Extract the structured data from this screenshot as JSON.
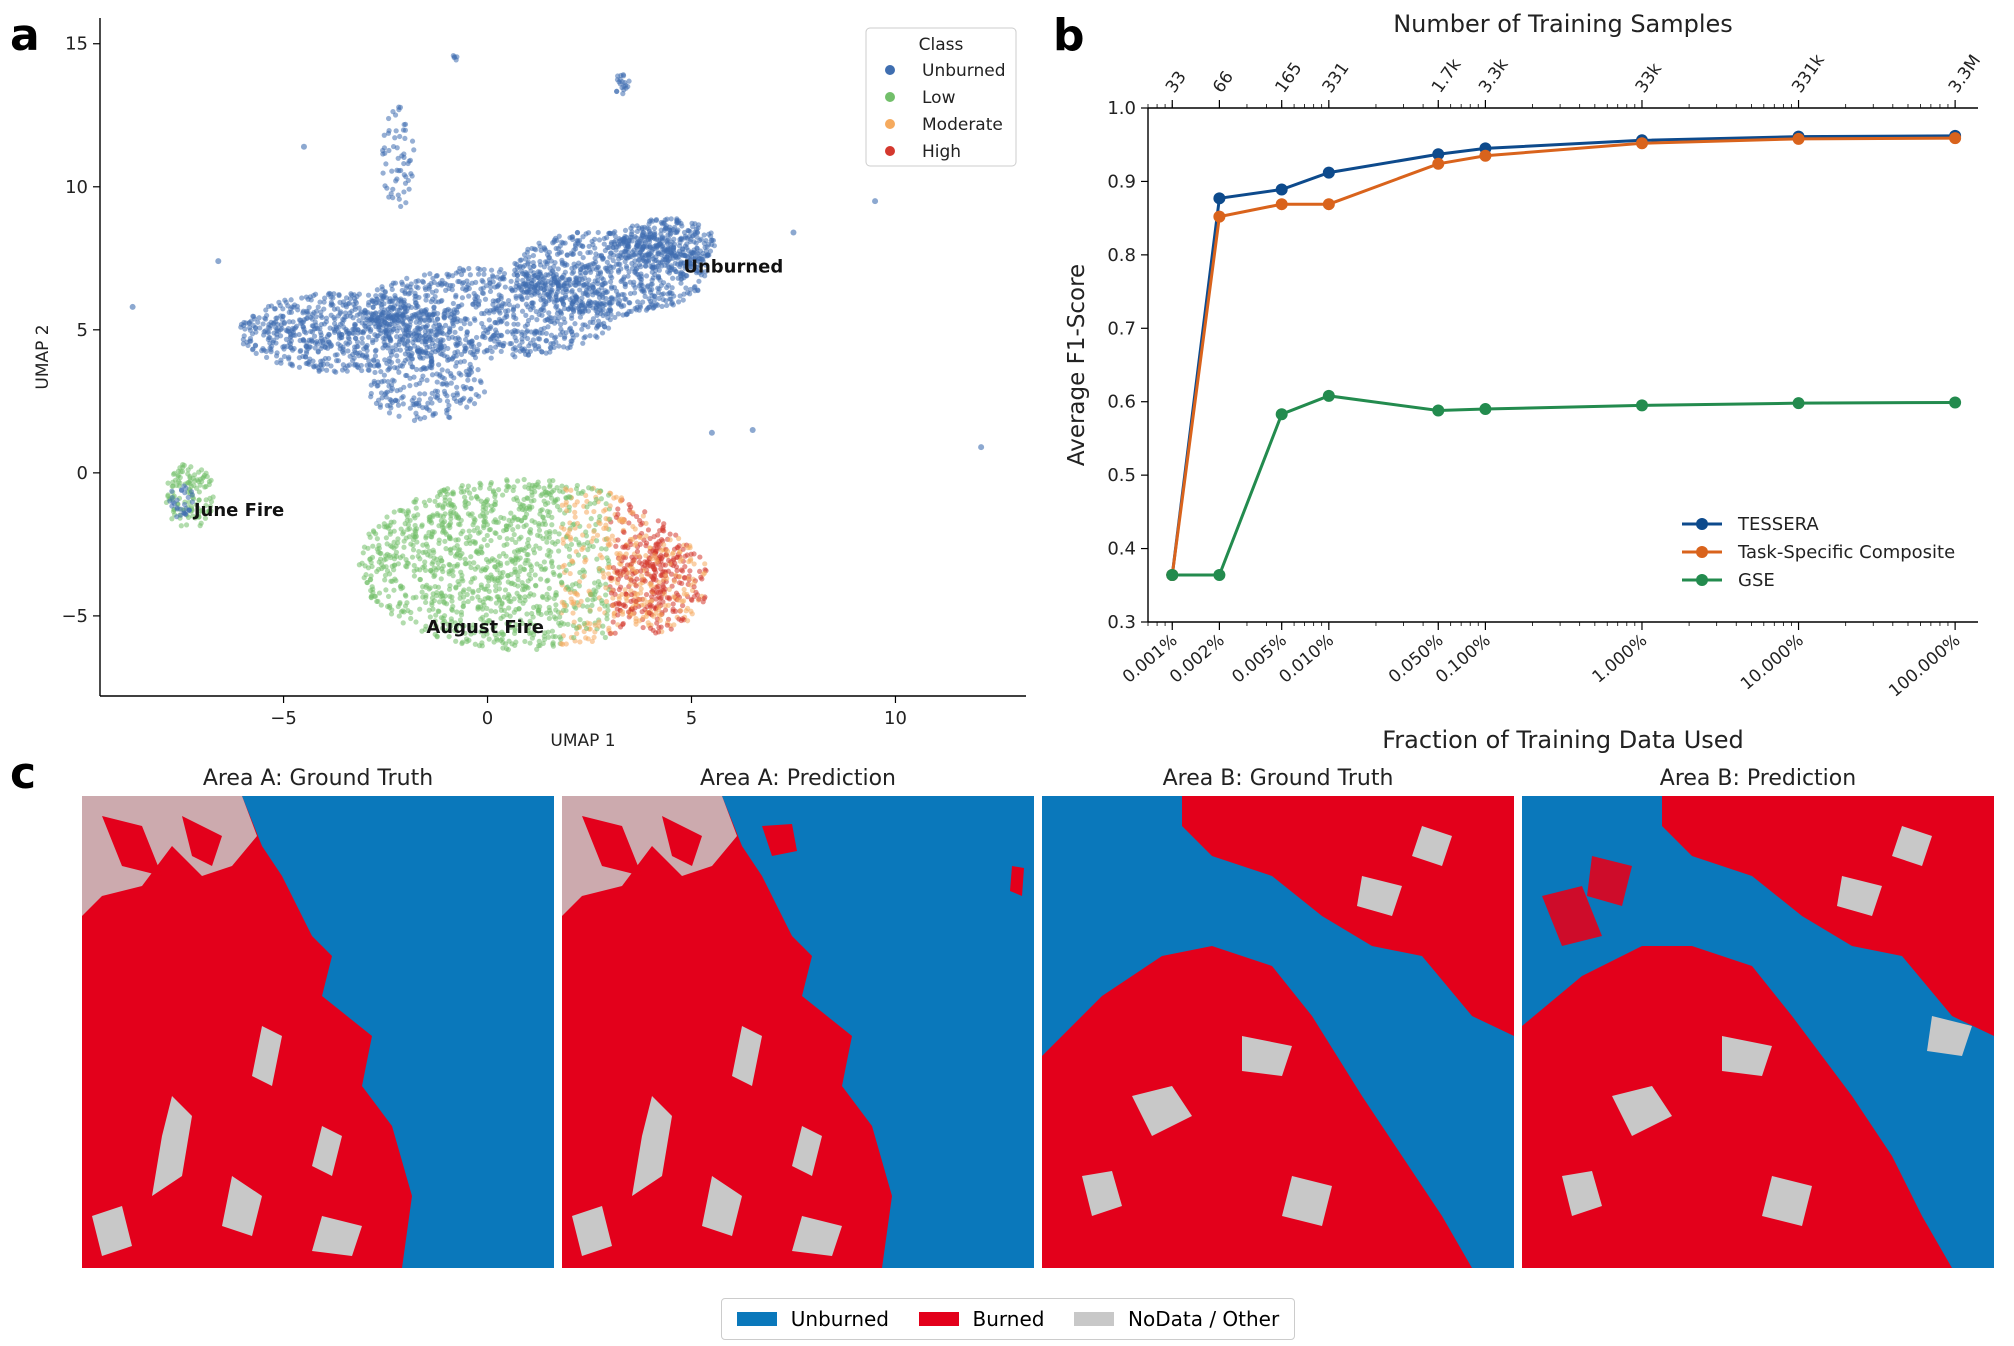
{
  "panel_labels": {
    "a": "a",
    "b": "b",
    "c": "c"
  },
  "chart_data": [
    {
      "type": "scatter",
      "panel": "a",
      "title": "",
      "xlabel": "UMAP 1",
      "ylabel": "UMAP 2",
      "xlim": [
        -9.5,
        13.2
      ],
      "ylim": [
        -7.8,
        15.9
      ],
      "xticks": [
        -5,
        0,
        5,
        10
      ],
      "xtick_labels": [
        "−5",
        "0",
        "5",
        "10"
      ],
      "yticks": [
        -5,
        0,
        5,
        10,
        15
      ],
      "ytick_labels": [
        "−5",
        "0",
        "5",
        "10",
        "15"
      ],
      "legend_title": "Class",
      "legend": [
        {
          "label": "Unburned",
          "color": "#3f6eb0"
        },
        {
          "label": "Low",
          "color": "#72bf6a"
        },
        {
          "label": "Moderate",
          "color": "#f5aa5e"
        },
        {
          "label": "High",
          "color": "#d4382e"
        }
      ],
      "annotations": [
        {
          "text": "Unburned",
          "x": 4.8,
          "y": 7.0
        },
        {
          "text": "June Fire",
          "x": -7.2,
          "y": -1.5
        },
        {
          "text": "August Fire",
          "x": -1.5,
          "y": -5.6
        }
      ],
      "clusters": [
        {
          "name": "Unburned",
          "class": "Unburned",
          "cx_range": [
            -6,
            5.5
          ],
          "cy_range": [
            1,
            9.5
          ]
        },
        {
          "name": "June Fire",
          "class": "Low",
          "cx_range": [
            -8,
            -6.8
          ],
          "cy_range": [
            -2,
            0.2
          ]
        },
        {
          "name": "August Fire",
          "class": "Low/Moderate/High",
          "cx_range": [
            -3.7,
            5.2
          ],
          "cy_range": [
            -6.6,
            1
          ]
        }
      ]
    },
    {
      "type": "line",
      "panel": "b",
      "title": "Number of Training Samples",
      "xlabel": "Fraction of Training Data Used",
      "ylabel": "Average F1-Score",
      "xscale": "log",
      "x": [
        0.001,
        0.002,
        0.005,
        0.01,
        0.05,
        0.1,
        1,
        10,
        100
      ],
      "xtick_labels": [
        "0.001%",
        "0.002%",
        "0.005%",
        "0.010%",
        "0.050%",
        "0.100%",
        "1.000%",
        "10.000%",
        "100.000%"
      ],
      "top_tick_labels": [
        "33",
        "66",
        "165",
        "331",
        "1.7k",
        "3.3k",
        "33k",
        "331k",
        "3.3M"
      ],
      "ylim": [
        0.3,
        1.0
      ],
      "yticks": [
        0.3,
        0.4,
        0.5,
        0.6,
        0.7,
        0.8,
        0.9,
        1.0
      ],
      "ytick_labels": [
        "0.3",
        "0.4",
        "0.5",
        "0.6",
        "0.7",
        "0.8",
        "0.9",
        "1.0"
      ],
      "series": [
        {
          "name": "TESSERA",
          "color": "#0d4a8c",
          "values": [
            0.364,
            0.877,
            0.889,
            0.912,
            0.937,
            0.945,
            0.956,
            0.961,
            0.962
          ]
        },
        {
          "name": "Task-Specific Composite",
          "color": "#d9631c",
          "values": [
            0.364,
            0.852,
            0.869,
            0.869,
            0.924,
            0.935,
            0.952,
            0.958,
            0.959
          ]
        },
        {
          "name": "GSE",
          "color": "#238b4e",
          "values": [
            0.364,
            0.364,
            0.583,
            0.608,
            0.588,
            0.59,
            0.595,
            0.598,
            0.599
          ]
        }
      ],
      "legend_position": "lower-right"
    }
  ],
  "maps": {
    "titles": [
      "Area A: Ground Truth",
      "Area A: Prediction",
      "Area B: Ground Truth",
      "Area B: Prediction"
    ],
    "colors": {
      "unburned": "#0a78bb",
      "burned": "#e3001b",
      "nodata": "#c8c8c8"
    },
    "legend": [
      {
        "label": "Unburned",
        "color": "#0a78bb"
      },
      {
        "label": "Burned",
        "color": "#e3001b"
      },
      {
        "label": "NoData / Other",
        "color": "#c8c8c8"
      }
    ]
  }
}
